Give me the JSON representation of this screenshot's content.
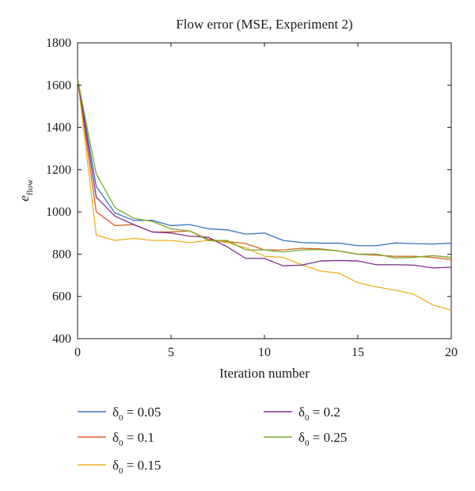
{
  "chart_data": {
    "type": "line",
    "title": "Flow error (MSE, Experiment 2)",
    "xlabel": "Iteration number",
    "ylabel": {
      "main": "e",
      "sub": "flow"
    },
    "xlim": [
      0,
      20
    ],
    "ylim": [
      400,
      1800
    ],
    "xticks": [
      "0",
      "5",
      "10",
      "15",
      "20"
    ],
    "yticks": [
      "400",
      "600",
      "800",
      "1000",
      "1200",
      "1400",
      "1600",
      "1800"
    ],
    "grid": false,
    "legend_position": "bottom",
    "x": [
      0,
      1,
      2,
      3,
      4,
      5,
      6,
      7,
      8,
      9,
      10,
      11,
      12,
      13,
      14,
      15,
      16,
      17,
      18,
      19,
      20
    ],
    "series": [
      {
        "label": {
          "sym": "δ",
          "sub": "0",
          "rest": " = 0.05"
        },
        "color": "#3a72c4",
        "values": [
          1630,
          1120,
          995,
          960,
          960,
          935,
          940,
          920,
          915,
          895,
          900,
          865,
          855,
          852,
          852,
          840,
          840,
          853,
          850,
          848,
          852
        ]
      },
      {
        "label": {
          "sym": "δ",
          "sub": "0",
          "rest": " = 0.1"
        },
        "color": "#d96220",
        "values": [
          1630,
          1000,
          935,
          940,
          905,
          905,
          910,
          870,
          860,
          850,
          820,
          820,
          828,
          825,
          815,
          800,
          795,
          790,
          790,
          785,
          775
        ]
      },
      {
        "label": {
          "sym": "δ",
          "sub": "0",
          "rest": " = 0.15"
        },
        "color": "#edb120",
        "values": [
          1630,
          890,
          865,
          875,
          865,
          865,
          855,
          865,
          855,
          830,
          790,
          785,
          750,
          720,
          710,
          665,
          645,
          630,
          610,
          560,
          535
        ]
      },
      {
        "label": {
          "sym": "δ",
          "sub": "0",
          "rest": " = 0.2"
        },
        "color": "#7e2f8e",
        "values": [
          1630,
          1070,
          980,
          940,
          905,
          900,
          885,
          880,
          835,
          780,
          780,
          745,
          748,
          768,
          770,
          768,
          750,
          750,
          748,
          735,
          738
        ]
      },
      {
        "label": {
          "sym": "δ",
          "sub": "0",
          "rest": " = 0.25"
        },
        "color": "#77ac30",
        "values": [
          1630,
          1180,
          1020,
          970,
          955,
          920,
          910,
          865,
          865,
          820,
          820,
          810,
          820,
          822,
          815,
          800,
          800,
          782,
          785,
          793,
          785
        ]
      }
    ]
  }
}
